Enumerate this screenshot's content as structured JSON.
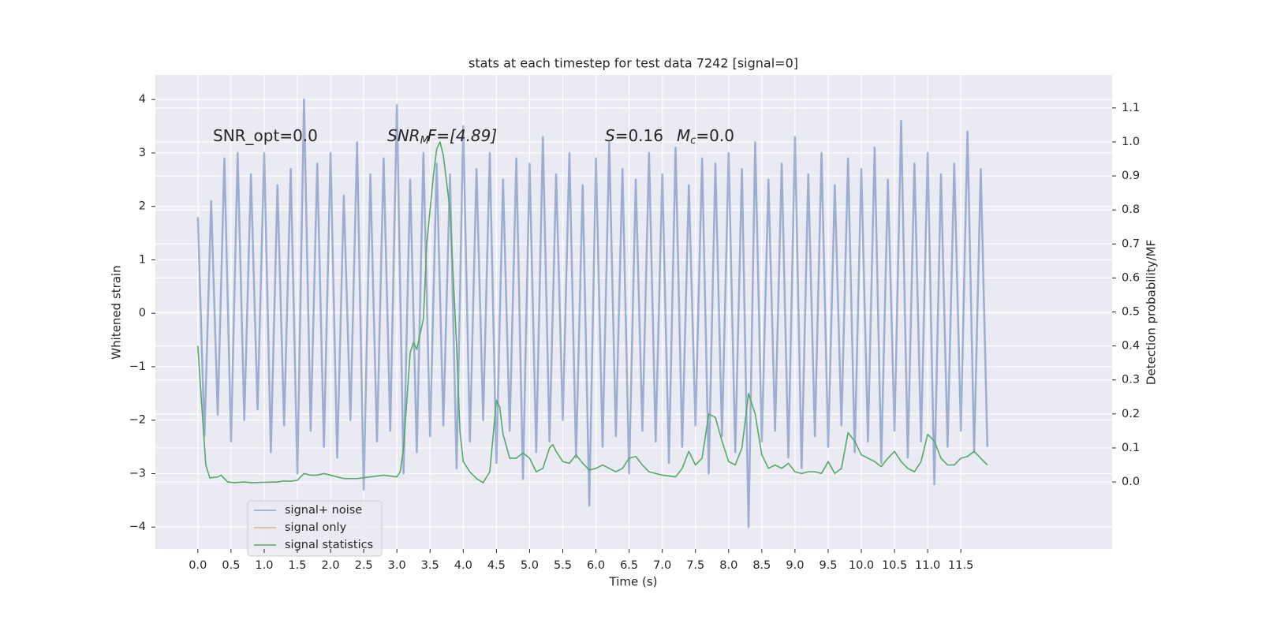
{
  "chart_data": {
    "type": "line",
    "title": "stats at each timestep for test data 7242 [signal=0]",
    "xlabel": "Time (s)",
    "ylabel": "Whitened strain",
    "y2label": "Detection probability/MF",
    "grid": true,
    "legend": "lower left",
    "xlim": [
      -0.64,
      13.78
    ],
    "ylim": [
      -4.41,
      4.46
    ],
    "y2lim": [
      -0.197,
      1.197
    ],
    "xticks": [
      {
        "value": 0,
        "label": "0.0"
      },
      0.5,
      {
        "value": 1,
        "label": "1.0"
      },
      1.5,
      {
        "value": 2,
        "label": "2.0"
      },
      2.5,
      {
        "value": 3,
        "label": "3.0"
      },
      3.5,
      {
        "value": 4,
        "label": "4.0"
      },
      4.5,
      {
        "value": 5,
        "label": "5.0"
      },
      5.5,
      {
        "value": 6,
        "label": "6.0"
      },
      6.5,
      {
        "value": 7,
        "label": "7.0"
      },
      7.5,
      {
        "value": 8,
        "label": "8.0"
      },
      8.5,
      {
        "value": 9,
        "label": "9.0"
      },
      9.5,
      {
        "value": 10,
        "label": "10.0"
      },
      10.5,
      {
        "value": 11,
        "label": "11.0"
      },
      11.5
    ],
    "yticks": [
      {
        "value": -4,
        "label": "−4"
      },
      {
        "value": -3,
        "label": "−3"
      },
      {
        "value": -2,
        "label": "−2"
      },
      {
        "value": -1,
        "label": "−1"
      },
      0,
      1,
      2,
      3,
      4
    ],
    "y2ticks": [
      {
        "value": 0,
        "label": "0.0"
      },
      0.1,
      0.2,
      0.3,
      0.4,
      0.5,
      0.6,
      0.7,
      0.8,
      0.9,
      {
        "value": 1,
        "label": "1.0"
      },
      1.1
    ],
    "annotations": [
      {
        "parts": [
          "SNR_opt=0.0"
        ]
      },
      {
        "parts": [
          "SNR",
          "M",
          "F=[4.89]"
        ]
      },
      {
        "parts": [
          "S",
          "=0.16"
        ]
      },
      {
        "parts": [
          "M",
          "c",
          "=0.0"
        ]
      }
    ],
    "series": [
      {
        "name": "signal+ noise",
        "color": "#4c72b0",
        "x": [
          0.0,
          0.1,
          0.2,
          0.3,
          0.4,
          0.5,
          0.6,
          0.7,
          0.8,
          0.9,
          1.0,
          1.1,
          1.2,
          1.3,
          1.4,
          1.5,
          1.6,
          1.7,
          1.8,
          1.9,
          2.0,
          2.1,
          2.2,
          2.3,
          2.4,
          2.5,
          2.6,
          2.7,
          2.8,
          2.9,
          3.0,
          3.1,
          3.2,
          3.3,
          3.4,
          3.5,
          3.6,
          3.7,
          3.8,
          3.9,
          4.0,
          4.1,
          4.2,
          4.3,
          4.4,
          4.5,
          4.6,
          4.7,
          4.8,
          4.9,
          5.0,
          5.1,
          5.2,
          5.3,
          5.4,
          5.5,
          5.6,
          5.7,
          5.8,
          5.9,
          6.0,
          6.1,
          6.2,
          6.3,
          6.4,
          6.5,
          6.6,
          6.7,
          6.8,
          6.9,
          7.0,
          7.1,
          7.2,
          7.3,
          7.4,
          7.5,
          7.6,
          7.7,
          7.8,
          7.9,
          8.0,
          8.1,
          8.2,
          8.3,
          8.4,
          8.5,
          8.6,
          8.7,
          8.8,
          8.9,
          9.0,
          9.1,
          9.2,
          9.3,
          9.4,
          9.5,
          9.6,
          9.7,
          9.8,
          9.9,
          10.0,
          10.1,
          10.2,
          10.3,
          10.4,
          10.5,
          10.6,
          10.7,
          10.8,
          10.9,
          11.0,
          11.1,
          11.2,
          11.3,
          11.4,
          11.5,
          11.6,
          11.7,
          11.8,
          11.9
        ],
        "values": [
          1.8,
          -2.3,
          2.1,
          -1.9,
          2.9,
          -2.4,
          3.0,
          -2.0,
          2.6,
          -1.8,
          3.0,
          -2.6,
          2.4,
          -2.1,
          2.7,
          -3.0,
          4.0,
          -2.2,
          2.8,
          -2.5,
          3.0,
          -2.7,
          2.2,
          -2.0,
          3.2,
          -3.3,
          2.6,
          -2.4,
          2.9,
          -2.2,
          3.9,
          -3.0,
          2.5,
          -2.6,
          3.0,
          -2.3,
          2.8,
          -2.1,
          2.6,
          -2.9,
          3.5,
          -2.4,
          2.7,
          -2.0,
          3.0,
          -2.8,
          2.5,
          -2.2,
          2.9,
          -3.1,
          2.8,
          -2.6,
          3.3,
          -2.4,
          2.6,
          -2.0,
          3.0,
          -2.7,
          2.4,
          -3.6,
          2.9,
          -2.5,
          3.2,
          -2.3,
          2.7,
          -3.0,
          2.5,
          -2.2,
          3.0,
          -2.4,
          2.6,
          -2.8,
          3.1,
          -2.5,
          2.4,
          -2.1,
          2.9,
          -3.0,
          2.8,
          -2.3,
          3.0,
          -2.6,
          2.7,
          -4.0,
          3.2,
          -2.4,
          2.5,
          -2.2,
          2.8,
          -2.7,
          3.3,
          -2.9,
          2.6,
          -2.3,
          3.0,
          -2.5,
          2.4,
          -2.1,
          2.9,
          -2.6,
          2.7,
          -2.4,
          3.1,
          -2.8,
          2.5,
          -2.2,
          3.6,
          -2.7,
          2.8,
          -2.4,
          3.0,
          -3.2,
          2.6,
          -2.5,
          2.8,
          -2.2,
          3.4,
          -2.6,
          2.7,
          -2.5
        ]
      },
      {
        "name": "signal only",
        "color": "#dd8452"
      },
      {
        "name": "signal statistics",
        "color": "#55a868",
        "axis": "y2",
        "x": [
          0.0,
          0.05,
          0.12,
          0.18,
          0.3,
          0.35,
          0.45,
          0.55,
          0.7,
          0.8,
          1.0,
          1.2,
          1.3,
          1.4,
          1.5,
          1.6,
          1.7,
          1.8,
          1.9,
          2.0,
          2.2,
          2.4,
          2.6,
          2.8,
          3.0,
          3.05,
          3.1,
          3.2,
          3.25,
          3.3,
          3.4,
          3.45,
          3.55,
          3.6,
          3.65,
          3.7,
          3.8,
          3.9,
          3.95,
          4.0,
          4.1,
          4.2,
          4.3,
          4.4,
          4.5,
          4.55,
          4.6,
          4.7,
          4.8,
          4.9,
          5.0,
          5.1,
          5.2,
          5.3,
          5.35,
          5.4,
          5.5,
          5.6,
          5.7,
          5.8,
          5.9,
          6.0,
          6.1,
          6.2,
          6.3,
          6.4,
          6.5,
          6.6,
          6.7,
          6.8,
          7.0,
          7.2,
          7.3,
          7.4,
          7.5,
          7.6,
          7.7,
          7.8,
          7.9,
          8.0,
          8.1,
          8.2,
          8.3,
          8.4,
          8.5,
          8.6,
          8.7,
          8.8,
          8.9,
          9.0,
          9.1,
          9.2,
          9.3,
          9.4,
          9.5,
          9.6,
          9.7,
          9.8,
          9.9,
          10.0,
          10.1,
          10.2,
          10.3,
          10.4,
          10.5,
          10.6,
          10.7,
          10.8,
          10.9,
          11.0,
          11.1,
          11.2,
          11.3,
          11.4,
          11.5,
          11.6,
          11.7,
          11.8,
          11.9
        ],
        "values": [
          0.4,
          0.25,
          0.05,
          0.012,
          0.015,
          0.02,
          0.0,
          -0.002,
          0.0,
          -0.002,
          -0.001,
          0.0,
          0.003,
          0.002,
          0.005,
          0.025,
          0.02,
          0.02,
          0.025,
          0.02,
          0.01,
          0.01,
          0.015,
          0.02,
          0.015,
          0.03,
          0.1,
          0.38,
          0.41,
          0.39,
          0.48,
          0.7,
          0.9,
          0.98,
          1.0,
          0.96,
          0.8,
          0.4,
          0.15,
          0.06,
          0.03,
          0.01,
          -0.002,
          0.03,
          0.24,
          0.22,
          0.14,
          0.07,
          0.07,
          0.085,
          0.07,
          0.03,
          0.04,
          0.1,
          0.11,
          0.09,
          0.06,
          0.055,
          0.08,
          0.055,
          0.035,
          0.04,
          0.05,
          0.04,
          0.03,
          0.04,
          0.07,
          0.075,
          0.05,
          0.03,
          0.02,
          0.015,
          0.04,
          0.09,
          0.05,
          0.07,
          0.2,
          0.19,
          0.12,
          0.06,
          0.05,
          0.1,
          0.26,
          0.2,
          0.08,
          0.04,
          0.05,
          0.04,
          0.055,
          0.03,
          0.025,
          0.03,
          0.03,
          0.025,
          0.06,
          0.025,
          0.04,
          0.145,
          0.12,
          0.08,
          0.07,
          0.06,
          0.045,
          0.07,
          0.09,
          0.06,
          0.04,
          0.03,
          0.06,
          0.14,
          0.12,
          0.07,
          0.05,
          0.05,
          0.07,
          0.075,
          0.09,
          0.07,
          0.05
        ]
      }
    ]
  }
}
